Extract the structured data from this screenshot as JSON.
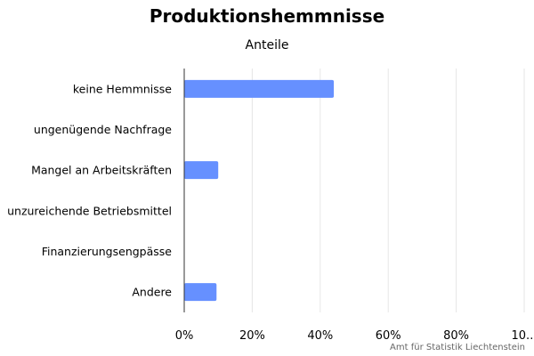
{
  "chart_data": {
    "type": "bar",
    "orientation": "horizontal",
    "title": "Produktionshemmnisse",
    "subtitle": "Anteile",
    "categories": [
      "keine Hemmnisse",
      "ungenügende Nachfrage",
      "Mangel an Arbeitskräften",
      "unzureichende Betriebsmittel",
      "Finanzierungsengpässe",
      "Andere"
    ],
    "values": [
      44,
      0,
      10,
      0,
      0,
      9.5
    ],
    "unit": "%",
    "xlim": [
      0,
      100
    ],
    "x_ticks": [
      "0%",
      "20%",
      "40%",
      "60%",
      "80%",
      "10..."
    ],
    "grid": true,
    "legend": "none",
    "bar_color": "#6690ff",
    "credit": "Amt für Statistik Liechtenstein"
  }
}
